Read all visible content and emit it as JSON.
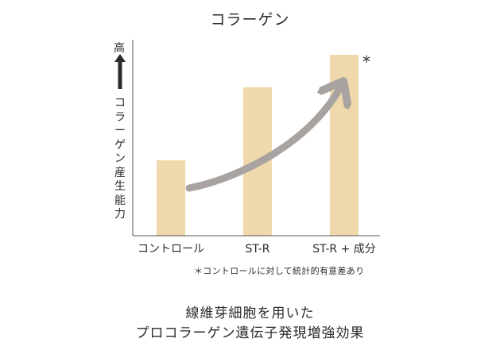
{
  "chart_data": {
    "type": "bar",
    "title": "コラーゲン",
    "ylabel_high": "高",
    "ylabel": "コラーゲン産生能力",
    "categories": [
      "コントロール",
      "ST-R",
      "ST-R + 成分"
    ],
    "values": [
      1.0,
      1.97,
      2.4
    ],
    "ylim": [
      0,
      2.6
    ],
    "significance_marker": "*",
    "significant_category_index": 2,
    "bar_color": "#efd9ac",
    "trend_arrow_color": "#a8a3a0",
    "grid": false,
    "footnote": "＊コントロールに対して統計的有意差あり"
  },
  "caption": {
    "line1": "線維芽細胞を用いた",
    "line2": "プロコラーゲン遺伝子発現増強効果"
  }
}
